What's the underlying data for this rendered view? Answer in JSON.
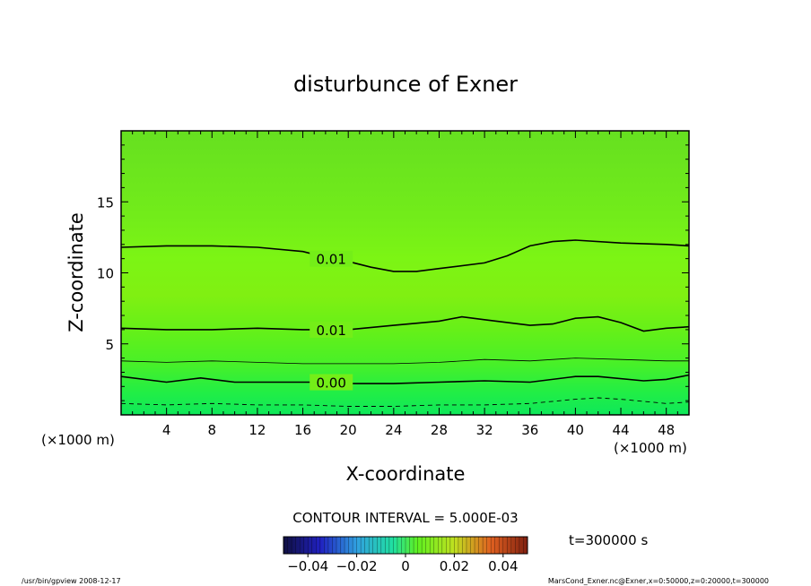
{
  "chart_data": {
    "type": "contour",
    "title": "disturbunce of Exner",
    "xlabel": "X-coordinate",
    "ylabel": "Z-coordinate",
    "xunit": "(×1000 m)",
    "xunit_right": "(×1000 m)",
    "xunit_left": "(×1000 m)",
    "zunit": "(×1000 m)",
    "xlim": [
      0,
      50
    ],
    "ylim": [
      0,
      20
    ],
    "xticks": [
      4,
      8,
      12,
      16,
      20,
      24,
      28,
      32,
      36,
      40,
      44,
      48
    ],
    "yticks": [
      5,
      10,
      15
    ],
    "contour_interval": "CONTOUR INTERVAL = 5.000E-03",
    "time_label": "t=300000 s",
    "colorbar": {
      "range": [
        -0.05,
        0.05
      ],
      "tick_values": [
        -0.04,
        -0.02,
        0,
        0.02,
        0.04
      ],
      "tick_labels": [
        "−0.04",
        "−0.02",
        "0",
        "0.02",
        "0.04"
      ]
    },
    "contours": [
      {
        "label": "0.01",
        "label_x": 18.5,
        "style": "solid",
        "points": [
          [
            0,
            11.8
          ],
          [
            4,
            11.9
          ],
          [
            8,
            11.9
          ],
          [
            12,
            11.8
          ],
          [
            16,
            11.5
          ],
          [
            18.5,
            11.0
          ],
          [
            20,
            10.8
          ],
          [
            22,
            10.4
          ],
          [
            24,
            10.1
          ],
          [
            26,
            10.1
          ],
          [
            28,
            10.3
          ],
          [
            32,
            10.7
          ],
          [
            34,
            11.2
          ],
          [
            36,
            11.9
          ],
          [
            38,
            12.2
          ],
          [
            40,
            12.3
          ],
          [
            44,
            12.1
          ],
          [
            48,
            12.0
          ],
          [
            50,
            11.9
          ]
        ]
      },
      {
        "label": "0.01",
        "label_x": 18.5,
        "style": "solid",
        "points": [
          [
            0,
            6.1
          ],
          [
            4,
            6.0
          ],
          [
            8,
            6.0
          ],
          [
            12,
            6.1
          ],
          [
            16,
            6.0
          ],
          [
            18.5,
            6.0
          ],
          [
            20,
            6.0
          ],
          [
            24,
            6.3
          ],
          [
            28,
            6.6
          ],
          [
            30,
            6.9
          ],
          [
            32,
            6.7
          ],
          [
            36,
            6.3
          ],
          [
            38,
            6.4
          ],
          [
            40,
            6.8
          ],
          [
            42,
            6.9
          ],
          [
            44,
            6.5
          ],
          [
            46,
            5.9
          ],
          [
            48,
            6.1
          ],
          [
            50,
            6.2
          ]
        ]
      },
      {
        "label": "",
        "label_x": null,
        "style": "thin",
        "points": [
          [
            0,
            3.8
          ],
          [
            4,
            3.7
          ],
          [
            8,
            3.8
          ],
          [
            12,
            3.7
          ],
          [
            16,
            3.6
          ],
          [
            20,
            3.6
          ],
          [
            24,
            3.6
          ],
          [
            28,
            3.7
          ],
          [
            32,
            3.9
          ],
          [
            36,
            3.8
          ],
          [
            40,
            4.0
          ],
          [
            44,
            3.9
          ],
          [
            48,
            3.8
          ],
          [
            50,
            3.8
          ]
        ]
      },
      {
        "label": "0.00",
        "label_x": 18.5,
        "style": "solid",
        "points": [
          [
            0,
            2.7
          ],
          [
            4,
            2.3
          ],
          [
            7,
            2.6
          ],
          [
            10,
            2.3
          ],
          [
            14,
            2.3
          ],
          [
            18.5,
            2.3
          ],
          [
            20,
            2.2
          ],
          [
            24,
            2.2
          ],
          [
            28,
            2.3
          ],
          [
            32,
            2.4
          ],
          [
            36,
            2.3
          ],
          [
            40,
            2.7
          ],
          [
            42,
            2.7
          ],
          [
            46,
            2.4
          ],
          [
            48,
            2.5
          ],
          [
            50,
            2.8
          ]
        ]
      },
      {
        "label": "",
        "label_x": null,
        "style": "dashed",
        "points": [
          [
            0,
            0.8
          ],
          [
            4,
            0.7
          ],
          [
            8,
            0.8
          ],
          [
            12,
            0.7
          ],
          [
            16,
            0.7
          ],
          [
            20,
            0.6
          ],
          [
            24,
            0.6
          ],
          [
            28,
            0.7
          ],
          [
            32,
            0.7
          ],
          [
            36,
            0.8
          ],
          [
            40,
            1.1
          ],
          [
            42,
            1.2
          ],
          [
            44,
            1.1
          ],
          [
            48,
            0.8
          ],
          [
            50,
            0.9
          ]
        ]
      }
    ],
    "fill_bands": [
      {
        "z_from": 0,
        "z_to": 2,
        "color": "#10ee55"
      },
      {
        "z_from": 2,
        "z_to": 4,
        "color": "#3cf02a"
      },
      {
        "z_from": 4,
        "z_to": 6,
        "color": "#60f018"
      },
      {
        "z_from": 6,
        "z_to": 9,
        "color": "#7cf010"
      },
      {
        "z_from": 9,
        "z_to": 13,
        "color": "#7cf712"
      },
      {
        "z_from": 13,
        "z_to": 20,
        "color": "#72ee1a"
      }
    ]
  },
  "footer": {
    "left": "/usr/bin/gpview   2008-12-17",
    "right": "MarsCond_Exner.nc@Exner,x=0:50000,z=0:20000,t=300000"
  }
}
